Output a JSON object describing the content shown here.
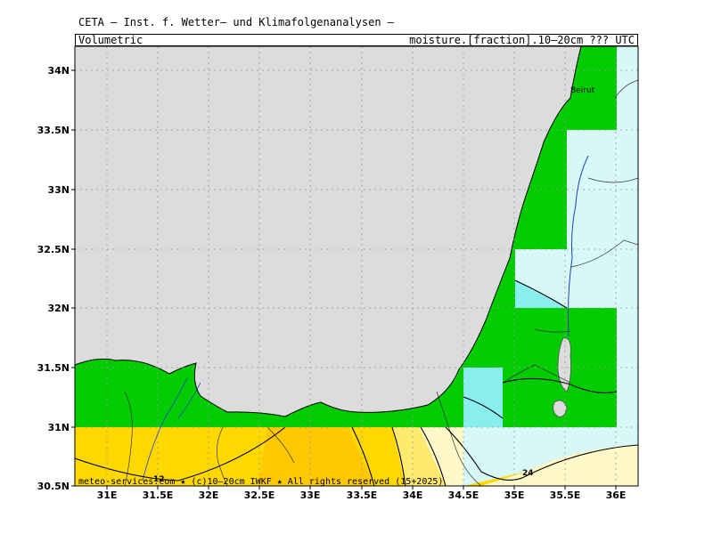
{
  "header": {
    "title": "CETA — Inst. f. Wetter– und Klimafolgenanalysen —",
    "left_label": "Volumetric",
    "right_label": "moisture.[fraction].10–20cm ??? UTC"
  },
  "map": {
    "lat_ticks": [
      "34N",
      "33.5N",
      "33N",
      "32.5N",
      "32N",
      "31.5N",
      "31N",
      "30.5N"
    ],
    "lon_ticks": [
      "31E",
      "31.5E",
      "32E",
      "32.5E",
      "33E",
      "33.5E",
      "34E",
      "34.5E",
      "35E",
      "35.5E",
      "36E"
    ],
    "city_label": "Beirut",
    "contour_labels": [
      "12",
      "24"
    ],
    "footer": "meteo-services.com ★ (c)10–20cm IWKF ★ All rights reserved (15+2025)",
    "colors": {
      "sea": "#dcdcdc",
      "moist_high": "#00cc00",
      "cyan_light": "#d8f8f8",
      "cyan_mid": "#88eeee",
      "orange": "#ffc800",
      "yellow_dark": "#ffd800",
      "yellow_mid": "#ffea70",
      "yellow_light": "#fff8c8"
    }
  }
}
